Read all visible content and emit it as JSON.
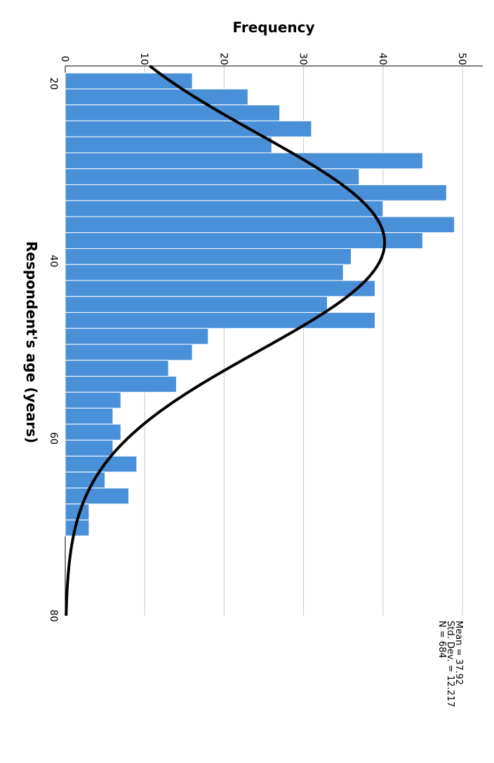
{
  "chart_data": {
    "type": "bar",
    "orientation": "rotated-90",
    "title": "",
    "xlabel": "Respondent's age (years)",
    "ylabel": "Frequency",
    "xlim": [
      18,
      80
    ],
    "ylim": [
      0,
      50
    ],
    "x_ticks": [
      "20",
      "40",
      "60",
      "80"
    ],
    "y_ticks": [
      "0",
      "10",
      "20",
      "30",
      "40",
      "50"
    ],
    "grid": true,
    "bar_color": "#4a90d9",
    "bin_width": 1.8,
    "bins_start": [
      18.8,
      20.6,
      22.4,
      24.2,
      26.0,
      27.8,
      29.6,
      31.4,
      33.2,
      35.0,
      36.8,
      38.6,
      40.4,
      42.2,
      44.0,
      45.8,
      47.6,
      49.4,
      51.2,
      53.0,
      54.8,
      56.6,
      58.4,
      60.2,
      62.0,
      63.8,
      65.6,
      67.4,
      69.2,
      71.0,
      72.8
    ],
    "values": [
      16,
      23,
      27,
      31,
      26,
      45,
      37,
      48,
      40,
      49,
      45,
      36,
      35,
      39,
      33,
      39,
      18,
      16,
      13,
      14,
      7,
      6,
      7,
      6,
      9,
      5,
      8,
      3,
      3,
      0,
      0
    ],
    "normal_curve": {
      "mean": 37.92,
      "sd": 12.217,
      "n": 684,
      "color": "#000000"
    },
    "stats": [
      "Mean = 37.92",
      "Std. Dev. = 12.217",
      "N = 684"
    ]
  }
}
